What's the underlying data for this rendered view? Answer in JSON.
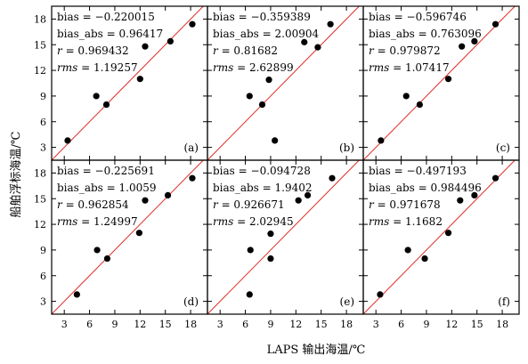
{
  "figure": {
    "xlabel": "LAPS 输出海温/℃",
    "ylabel": "船舶浮标海温/℃"
  },
  "colors": {
    "identity_line": "#e0302a",
    "points": "#000000",
    "frame": "#000000"
  },
  "chart_data": [
    {
      "type": "scatter",
      "panel_label": "(a)",
      "stats": {
        "bias": "bias = −0.220015",
        "bias_abs": "bias_abs = 0.96417",
        "r": "0.969432",
        "rms": "1.19257"
      },
      "xlim": [
        1.5,
        20
      ],
      "ylim": [
        1.5,
        19.5
      ],
      "identity_line": true,
      "points": [
        [
          3.4,
          3.8
        ],
        [
          6.8,
          9.0
        ],
        [
          8.0,
          8.0
        ],
        [
          12.0,
          11.0
        ],
        [
          12.6,
          14.8
        ],
        [
          15.6,
          15.4
        ],
        [
          18.2,
          17.4
        ]
      ]
    },
    {
      "type": "scatter",
      "panel_label": "(b)",
      "stats": {
        "bias": "bias = −0.359389",
        "bias_abs": "bias_abs = 2.00904",
        "r": "0.81682",
        "rms": "2.62899"
      },
      "xlim": [
        1.5,
        20
      ],
      "ylim": [
        1.5,
        19.5
      ],
      "identity_line": true,
      "points": [
        [
          6.5,
          9.0
        ],
        [
          8.0,
          8.0
        ],
        [
          8.8,
          10.9
        ],
        [
          9.5,
          3.8
        ],
        [
          13.0,
          15.3
        ],
        [
          14.6,
          14.7
        ],
        [
          16.1,
          17.4
        ]
      ]
    },
    {
      "type": "scatter",
      "panel_label": "(c)",
      "stats": {
        "bias": "bias = −0.596746",
        "bias_abs": "bias_abs = 0.763096",
        "r": "0.979872",
        "rms": "1.07417"
      },
      "xlim": [
        1.5,
        20
      ],
      "ylim": [
        1.5,
        19.5
      ],
      "identity_line": true,
      "points": [
        [
          3.6,
          3.8
        ],
        [
          6.6,
          9.0
        ],
        [
          8.2,
          8.0
        ],
        [
          11.6,
          11.0
        ],
        [
          13.2,
          14.8
        ],
        [
          14.7,
          15.4
        ],
        [
          17.2,
          17.4
        ]
      ]
    },
    {
      "type": "scatter",
      "panel_label": "(d)",
      "stats": {
        "bias": "bias = −0.225691",
        "bias_abs": "bias_abs = 1.0059",
        "r": "0.962854",
        "rms": "1.24997"
      },
      "xlim": [
        1.5,
        20
      ],
      "ylim": [
        1.5,
        19.5
      ],
      "identity_line": true,
      "points": [
        [
          4.5,
          3.8
        ],
        [
          6.9,
          9.0
        ],
        [
          8.1,
          8.0
        ],
        [
          11.9,
          11.0
        ],
        [
          12.6,
          14.8
        ],
        [
          15.3,
          15.4
        ],
        [
          18.2,
          17.4
        ]
      ]
    },
    {
      "type": "scatter",
      "panel_label": "(e)",
      "stats": {
        "bias": "bias = −0.094728",
        "bias_abs": "bias_abs = 1.9402",
        "r": "0.926671",
        "rms": "2.02945"
      },
      "xlim": [
        1.5,
        20
      ],
      "ylim": [
        1.5,
        19.5
      ],
      "identity_line": true,
      "points": [
        [
          6.5,
          3.8
        ],
        [
          6.6,
          9.0
        ],
        [
          9.0,
          8.0
        ],
        [
          9.0,
          10.9
        ],
        [
          12.3,
          14.8
        ],
        [
          13.4,
          15.4
        ],
        [
          16.3,
          17.4
        ]
      ]
    },
    {
      "type": "scatter",
      "panel_label": "(f)",
      "stats": {
        "bias": "bias = −0.497193",
        "bias_abs": "bias_abs = 0.984496",
        "r": "0.971678",
        "rms": "1.1682"
      },
      "xlim": [
        1.5,
        20
      ],
      "ylim": [
        1.5,
        19.5
      ],
      "identity_line": true,
      "points": [
        [
          3.5,
          3.8
        ],
        [
          6.8,
          9.0
        ],
        [
          8.8,
          8.0
        ],
        [
          11.6,
          11.0
        ],
        [
          13.0,
          14.8
        ],
        [
          14.7,
          15.4
        ],
        [
          17.2,
          17.4
        ]
      ]
    }
  ],
  "axes": {
    "xticks": [
      "3",
      "6",
      "9",
      "12",
      "15",
      "18"
    ],
    "yticks": [
      "3",
      "6",
      "9",
      "12",
      "15",
      "18"
    ]
  }
}
